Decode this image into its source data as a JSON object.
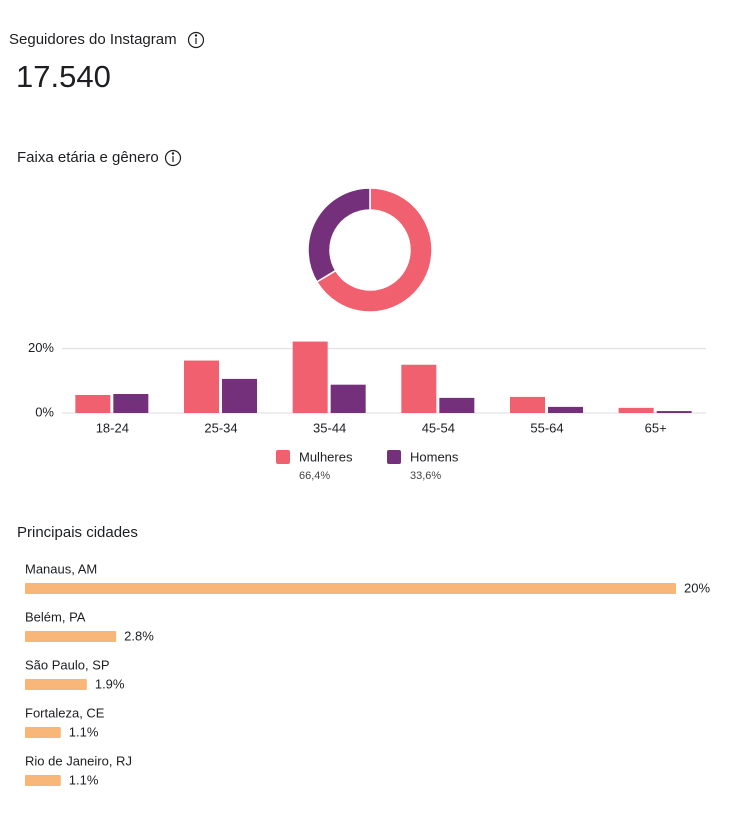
{
  "header": {
    "title": "Seguidores do Instagram",
    "value": "17.540"
  },
  "chart_data": [
    {
      "type": "pie",
      "title": "Faixa etária e gênero",
      "donut": true,
      "categories": [
        "Mulheres",
        "Homens"
      ],
      "values": [
        66.4,
        33.6
      ],
      "value_labels": [
        "66,4%",
        "33,6%"
      ],
      "colors": [
        "#f0606e",
        "#74307a"
      ]
    },
    {
      "type": "bar",
      "categories": [
        "18-24",
        "25-34",
        "35-44",
        "45-54",
        "55-64",
        "65+"
      ],
      "series": [
        {
          "color": "#f0606e",
          "values": [
            5.6,
            16.3,
            22.2,
            15,
            5,
            1.6
          ]
        },
        {
          "color": "#74307a",
          "values": [
            5.9,
            10.6,
            8.8,
            4.7,
            1.9,
            0.6
          ]
        }
      ],
      "ylim": [
        0,
        23
      ],
      "yticks": [
        {
          "value": 0,
          "label": "0%"
        },
        {
          "value": 20,
          "label": "20%"
        }
      ],
      "grid": true
    },
    {
      "type": "bar",
      "orientation": "horizontal",
      "title": "Principais cidades",
      "categories": [
        "Manaus, AM",
        "Belém, PA",
        "São Paulo, SP",
        "Fortaleza, CE",
        "Rio de Janeiro, RJ"
      ],
      "values": [
        20,
        2.8,
        1.9,
        1.1,
        1.1
      ],
      "value_labels": [
        "20%",
        "2.8%",
        "1.9%",
        "1.1%",
        "1.1%"
      ],
      "color": "#f8b778",
      "xlim": [
        0,
        20
      ]
    }
  ]
}
